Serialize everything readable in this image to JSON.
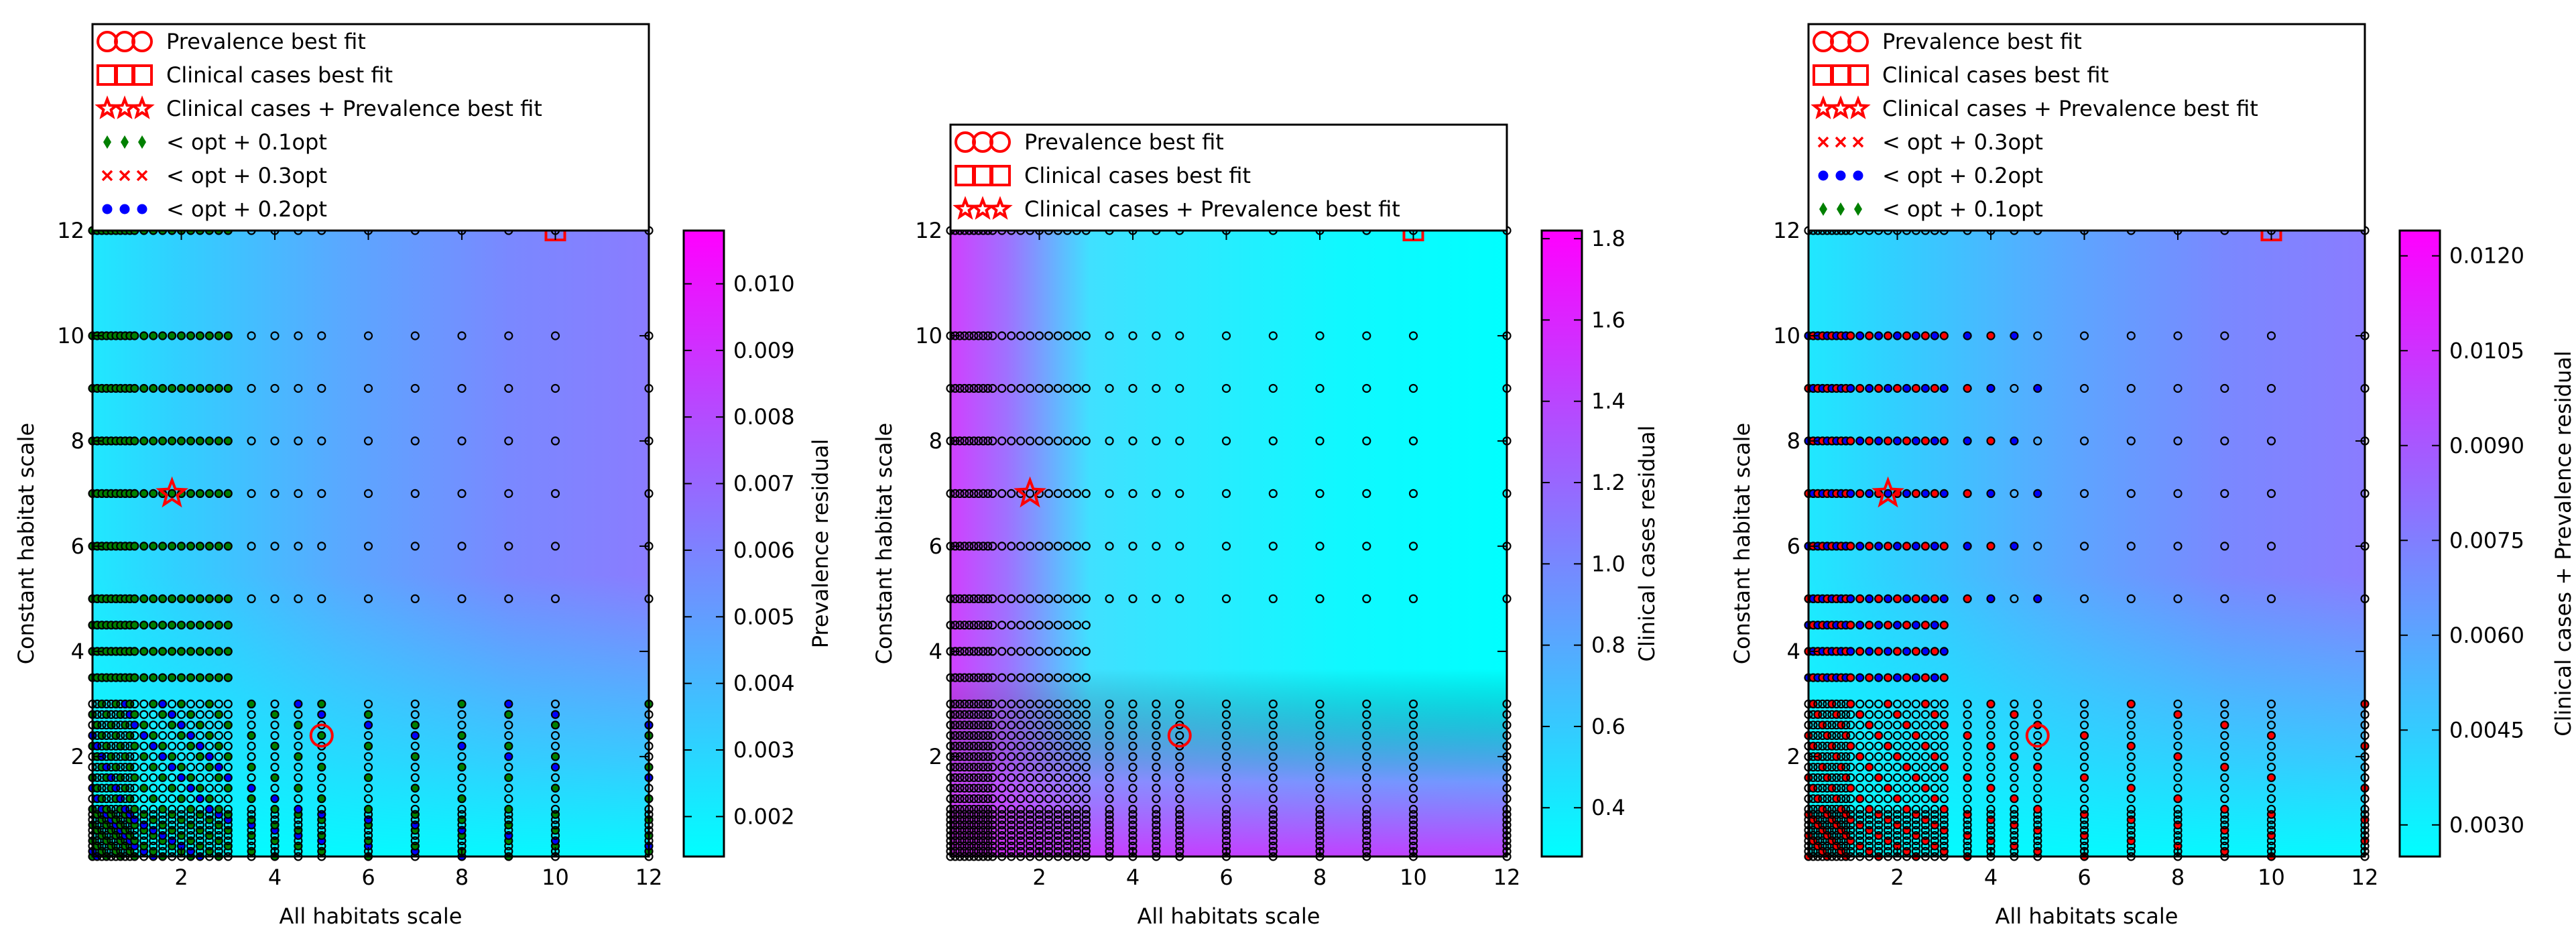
{
  "chart_data": [
    {
      "type": "heatmap",
      "xlabel": "All habitats scale",
      "ylabel": "Constant habitat scale",
      "xticks": [
        2,
        4,
        6,
        8,
        10,
        12
      ],
      "yticks": [
        2,
        4,
        6,
        8,
        10,
        12
      ],
      "xlim": [
        0.1,
        12
      ],
      "ylim": [
        0.1,
        12
      ],
      "colorbar": {
        "label": "Prevalence residual",
        "range": [
          0.0014,
          0.0108
        ],
        "ticks": [
          "0.002",
          "0.003",
          "0.004",
          "0.005",
          "0.006",
          "0.007",
          "0.008",
          "0.009",
          "0.010"
        ],
        "tick_values": [
          0.002,
          0.003,
          0.004,
          0.005,
          0.006,
          0.007,
          0.008,
          0.009,
          0.01
        ]
      },
      "best_fit": {
        "prevalence": [
          5,
          2.4
        ],
        "clinical": [
          10,
          12
        ],
        "combined": [
          1.8,
          7
        ]
      },
      "legend": [
        {
          "label": "Prevalence best fit",
          "marker": "circle-open",
          "color": "#ff0000"
        },
        {
          "label": "Clinical cases best fit",
          "marker": "square-open",
          "color": "#ff0000"
        },
        {
          "label": "Clinical cases + Prevalence best fit",
          "marker": "star-open",
          "color": "#ff0000"
        },
        {
          "label": "< opt + 0.1opt",
          "marker": "diamond",
          "color": "#008000"
        },
        {
          "label": "< opt + 0.3opt",
          "marker": "x",
          "color": "#ff0000"
        },
        {
          "label": "< opt + 0.2opt",
          "marker": "dot",
          "color": "#0000ff"
        }
      ]
    },
    {
      "type": "heatmap",
      "xlabel": "All habitats scale",
      "ylabel": "Constant habitat scale",
      "xticks": [
        2,
        4,
        6,
        8,
        10,
        12
      ],
      "yticks": [
        2,
        4,
        6,
        8,
        10,
        12
      ],
      "xlim": [
        0.1,
        12
      ],
      "ylim": [
        0.1,
        12
      ],
      "colorbar": {
        "label": "Clinical cases residual",
        "range": [
          0.28,
          1.82
        ],
        "ticks": [
          "0.4",
          "0.6",
          "0.8",
          "1.0",
          "1.2",
          "1.4",
          "1.6",
          "1.8"
        ],
        "tick_values": [
          0.4,
          0.6,
          0.8,
          1.0,
          1.2,
          1.4,
          1.6,
          1.8
        ]
      },
      "best_fit": {
        "prevalence": [
          5,
          2.4
        ],
        "clinical": [
          10,
          12
        ],
        "combined": [
          1.8,
          7
        ]
      },
      "legend": [
        {
          "label": "Prevalence best fit",
          "marker": "circle-open",
          "color": "#ff0000"
        },
        {
          "label": "Clinical cases best fit",
          "marker": "square-open",
          "color": "#ff0000"
        },
        {
          "label": "Clinical cases + Prevalence best fit",
          "marker": "star-open",
          "color": "#ff0000"
        }
      ]
    },
    {
      "type": "heatmap",
      "xlabel": "All habitats scale",
      "ylabel": "Constant habitat scale",
      "xticks": [
        2,
        4,
        6,
        8,
        10,
        12
      ],
      "yticks": [
        2,
        4,
        6,
        8,
        10,
        12
      ],
      "xlim": [
        0.1,
        12
      ],
      "ylim": [
        0.1,
        12
      ],
      "colorbar": {
        "label": "Clinical cases + Prevalence residual",
        "range": [
          0.0025,
          0.0124
        ],
        "ticks": [
          "0.0030",
          "0.0045",
          "0.0060",
          "0.0075",
          "0.0090",
          "0.0105",
          "0.0120"
        ],
        "tick_values": [
          0.003,
          0.0045,
          0.006,
          0.0075,
          0.009,
          0.0105,
          0.012
        ]
      },
      "best_fit": {
        "prevalence": [
          5,
          2.4
        ],
        "clinical": [
          10,
          12
        ],
        "combined": [
          1.8,
          7
        ]
      },
      "legend": [
        {
          "label": "Prevalence best fit",
          "marker": "circle-open",
          "color": "#ff0000"
        },
        {
          "label": "Clinical cases best fit",
          "marker": "square-open",
          "color": "#ff0000"
        },
        {
          "label": "Clinical cases + Prevalence best fit",
          "marker": "star-open",
          "color": "#ff0000"
        },
        {
          "label": "< opt + 0.3opt",
          "marker": "x",
          "color": "#ff0000"
        },
        {
          "label": "< opt + 0.2opt",
          "marker": "dot",
          "color": "#0000ff"
        },
        {
          "label": "< opt + 0.1opt",
          "marker": "diamond",
          "color": "#008000"
        }
      ]
    }
  ],
  "grid_points": {
    "x_values": [
      0.1,
      0.2,
      0.3,
      0.4,
      0.5,
      0.6,
      0.7,
      0.8,
      0.9,
      1.0,
      1.2,
      1.4,
      1.6,
      1.8,
      2.0,
      2.2,
      2.4,
      2.6,
      2.8,
      3.0,
      3.5,
      4.0,
      4.5,
      5.0,
      6.0,
      7.0,
      8.0,
      9.0,
      10.0,
      12.0
    ],
    "y_values": [
      0.1,
      0.2,
      0.3,
      0.4,
      0.5,
      0.6,
      0.7,
      0.8,
      0.9,
      1.0,
      1.2,
      1.4,
      1.6,
      1.8,
      2.0,
      2.2,
      2.4,
      2.6,
      2.8,
      3.0,
      3.5,
      4.0,
      4.5,
      5.0,
      6.0,
      7.0,
      8.0,
      9.0,
      10.0,
      12.0
    ],
    "sparse_row_x_values": [
      0.1,
      0.2,
      0.3,
      0.4,
      0.5,
      0.6,
      0.7,
      0.8,
      0.9,
      1.0,
      1.2,
      1.4,
      1.6,
      1.8,
      2.0,
      2.2,
      2.4,
      2.6,
      2.8,
      3.0,
      3.5,
      4.0,
      4.5,
      5.0,
      6.0,
      7.0,
      8.0,
      9.0,
      10.0,
      12.0
    ]
  },
  "colors": {
    "colormap_low": "#00ffff",
    "colormap_high": "#ff00ff",
    "best_fit_marker": "#ff0000",
    "within_01": "#008000",
    "within_02": "#0000ff",
    "within_03": "#ff0000",
    "grid_marker_edge": "#000000"
  }
}
